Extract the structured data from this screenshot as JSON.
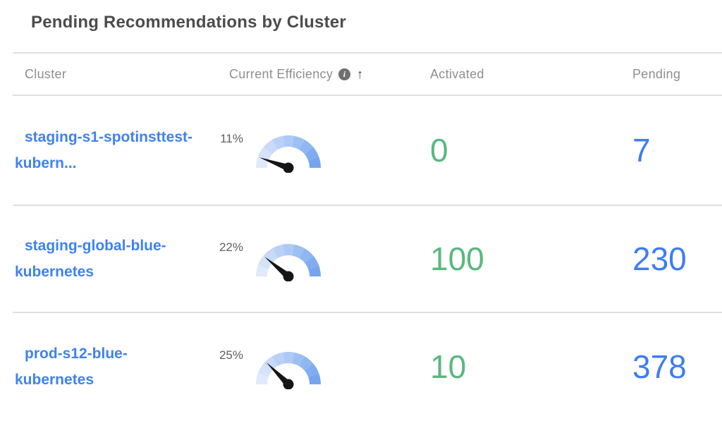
{
  "panel": {
    "title": "Pending Recommendations by Cluster"
  },
  "table": {
    "columns": [
      {
        "label": "Cluster"
      },
      {
        "label": "Current Efficiency",
        "info_icon": "i",
        "sort_arrow": "↑",
        "sort_direction": "ascending"
      },
      {
        "label": "Activated"
      },
      {
        "label": "Pending"
      }
    ],
    "rows": [
      {
        "cluster_lines": [
          "staging-s1-spotinsttest-",
          "kubern..."
        ],
        "efficiency": "11%",
        "efficiency_pct": 11,
        "activated": "0",
        "pending": "7"
      },
      {
        "cluster_lines": [
          "staging-global-blue-",
          "kubernetes"
        ],
        "efficiency": "22%",
        "efficiency_pct": 22,
        "activated": "100",
        "pending": "230"
      },
      {
        "cluster_lines": [
          "prod-s12-blue-",
          "kubernetes"
        ],
        "efficiency": "25%",
        "efficiency_pct": 25,
        "activated": "10",
        "pending": "378"
      }
    ]
  },
  "colors": {
    "link_blue": "#3f82f1",
    "pending_blue": "#3f7df2",
    "activated_green": "#58b97e",
    "needle": "#151515",
    "gauge_segments": [
      "#dfeafb",
      "#d5e3fa",
      "#c8daf8",
      "#bad1f7",
      "#accaf5",
      "#9dc0f3",
      "#8fb7f2",
      "#81adf0",
      "#76a5ee"
    ]
  }
}
